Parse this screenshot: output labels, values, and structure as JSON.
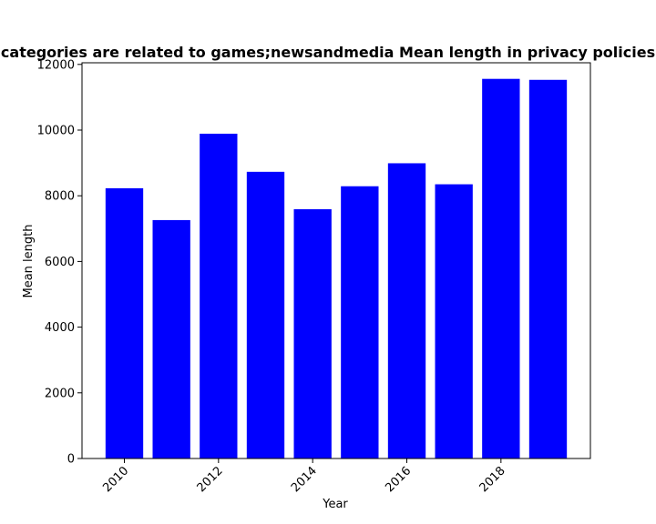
{
  "chart_data": {
    "type": "bar",
    "title": "categories are related to games;newsandmedia Mean length in privacy policies",
    "xlabel": "Year",
    "ylabel": "Mean length",
    "x": [
      2010,
      2011,
      2012,
      2013,
      2014,
      2015,
      2016,
      2017,
      2018,
      2019
    ],
    "values": [
      8230,
      7260,
      9890,
      8730,
      7590,
      8290,
      8990,
      8350,
      11560,
      11530
    ],
    "bar_color": "#0000ff",
    "xlim": [
      2009.1,
      2019.9
    ],
    "ylim": [
      0,
      12050
    ],
    "x_ticks": [
      2010,
      2012,
      2014,
      2016,
      2018
    ],
    "y_ticks": [
      0,
      2000,
      4000,
      6000,
      8000,
      10000,
      12000
    ],
    "grid": false,
    "legend": "none"
  }
}
